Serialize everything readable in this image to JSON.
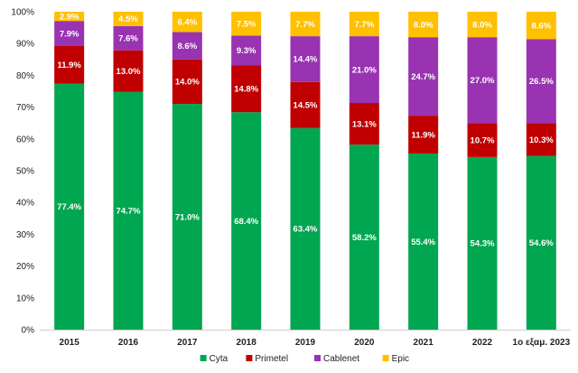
{
  "chart_data": {
    "type": "bar",
    "stacked": true,
    "percent_stacked": true,
    "categories": [
      "2015",
      "2016",
      "2017",
      "2018",
      "2019",
      "2020",
      "2021",
      "2022",
      "1ο εξαμ. 2023"
    ],
    "series": [
      {
        "name": "Cyta",
        "color": "#00a650",
        "label_color": "#ffffff",
        "values": [
          77.4,
          74.7,
          71.0,
          68.4,
          63.4,
          58.2,
          55.4,
          54.3,
          54.6
        ],
        "labels": [
          "77.4%",
          "74.7%",
          "71.0%",
          "68.4%",
          "63.4%",
          "58.2%",
          "55.4%",
          "54.3%",
          "54.6%"
        ]
      },
      {
        "name": "Primetel",
        "color": "#c00000",
        "label_color": "#ffffff",
        "values": [
          11.9,
          13.0,
          14.0,
          14.8,
          14.5,
          13.1,
          11.9,
          10.7,
          10.3
        ],
        "labels": [
          "11.9%",
          "13.0%",
          "14.0%",
          "14.8%",
          "14.5%",
          "13.1%",
          "11.9%",
          "10.7%",
          "10.3%"
        ]
      },
      {
        "name": "Cablenet",
        "color": "#9933b2",
        "label_color": "#ffffff",
        "values": [
          7.9,
          7.6,
          8.6,
          9.3,
          14.4,
          21.0,
          24.7,
          27.0,
          26.5
        ],
        "labels": [
          "7.9%",
          "7.6%",
          "8.6%",
          "9.3%",
          "14.4%",
          "21.0%",
          "24.7%",
          "27.0%",
          "26.5%"
        ]
      },
      {
        "name": "Epic",
        "color": "#ffc000",
        "label_color": "#ffffff",
        "values": [
          2.9,
          4.5,
          6.4,
          7.5,
          7.7,
          7.7,
          8.0,
          8.0,
          8.6
        ],
        "labels": [
          "2.9%",
          "4.5%",
          "6.4%",
          "7.5%",
          "7.7%",
          "7.7%",
          "8.0%",
          "8.0%",
          "8.6%"
        ]
      }
    ],
    "yticks": [
      "0%",
      "10%",
      "20%",
      "30%",
      "40%",
      "50%",
      "60%",
      "70%",
      "80%",
      "90%",
      "100%"
    ],
    "ylim": [
      0,
      100
    ],
    "grid": false,
    "legend": {
      "position": "bottom",
      "entries": [
        "Cyta",
        "Primetel",
        "Cablenet",
        "Epic"
      ]
    }
  }
}
